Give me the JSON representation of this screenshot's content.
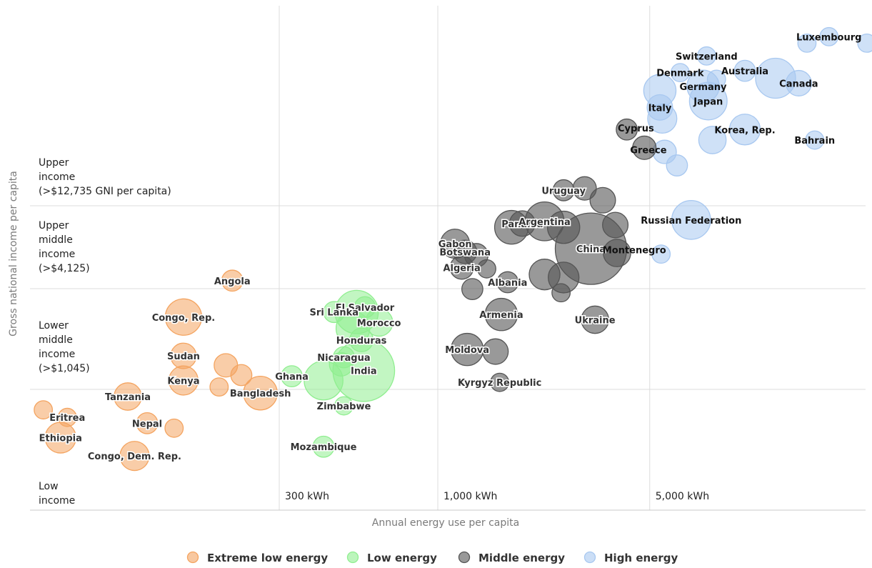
{
  "chart_data": {
    "type": "scatter",
    "xlabel": "Annual energy use per capita",
    "ylabel": "Gross national income per capita",
    "xscale": "log",
    "yscale": "categorical-bands",
    "x_ticks": [
      {
        "value": 300,
        "label": "300 kWh"
      },
      {
        "value": 1000,
        "label": "1,000 kWh"
      },
      {
        "value": 5000,
        "label": "5,000 kWh"
      }
    ],
    "income_bands": [
      {
        "label": [
          "Upper",
          "income",
          "(>$12,735 GNI per capita)"
        ]
      },
      {
        "label": [
          "Upper",
          "middle",
          "income",
          "(>$4,125)"
        ]
      },
      {
        "label": [
          "Lower",
          "middle",
          "income",
          "(>$1,045)"
        ]
      },
      {
        "label": [
          "Low",
          "income"
        ]
      }
    ],
    "legend_position": "bottom",
    "series": [
      {
        "name": "Extreme low energy",
        "color": "#f4a460",
        "points": [
          {
            "label": "Angola",
            "x": 210,
            "y": 4600,
            "size": 3
          },
          {
            "label": "Congo, Rep.",
            "x": 145,
            "y": 2800,
            "size": 12
          },
          {
            "label": "Sudan",
            "x": 145,
            "y": 1650,
            "size": 5
          },
          {
            "label": "Kenya",
            "x": 145,
            "y": 1180,
            "size": 7
          },
          {
            "label": "",
            "x": 200,
            "y": 1450,
            "size": 4
          },
          {
            "label": "",
            "x": 225,
            "y": 1270,
            "size": 3
          },
          {
            "label": "",
            "x": 190,
            "y": 1080,
            "size": 2
          },
          {
            "label": "Bangladesh",
            "x": 260,
            "y": 1000,
            "size": 10
          },
          {
            "label": "Tanzania",
            "x": 95,
            "y": 960,
            "size": 6
          },
          {
            "label": "",
            "x": 50,
            "y": 820,
            "size": 2
          },
          {
            "label": "Eritrea",
            "x": 60,
            "y": 750,
            "size": 2
          },
          {
            "label": "Nepal",
            "x": 110,
            "y": 700,
            "size": 3
          },
          {
            "label": "",
            "x": 135,
            "y": 660,
            "size": 2
          },
          {
            "label": "Ethiopia",
            "x": 57,
            "y": 590,
            "size": 8
          },
          {
            "label": "Congo, Dem. Rep.",
            "x": 100,
            "y": 475,
            "size": 7
          }
        ]
      },
      {
        "name": "Low energy",
        "color": "#90ee90",
        "points": [
          {
            "label": "El Salvador",
            "x": 575,
            "y": 3200,
            "size": 3
          },
          {
            "label": "Sri Lanka",
            "x": 455,
            "y": 3000,
            "size": 3
          },
          {
            "label": "",
            "x": 540,
            "y": 3000,
            "size": 18
          },
          {
            "label": "Morocco",
            "x": 640,
            "y": 2600,
            "size": 6
          },
          {
            "label": "",
            "x": 525,
            "y": 2400,
            "size": 10
          },
          {
            "label": "Honduras",
            "x": 560,
            "y": 2050,
            "size": 4
          },
          {
            "label": "Nicaragua",
            "x": 490,
            "y": 1620,
            "size": 3
          },
          {
            "label": "",
            "x": 480,
            "y": 1470,
            "size": 4
          },
          {
            "label": "India",
            "x": 570,
            "y": 1350,
            "size": 40
          },
          {
            "label": "",
            "x": 420,
            "y": 1180,
            "size": 14
          },
          {
            "label": "Ghana",
            "x": 330,
            "y": 1250,
            "size": 3
          },
          {
            "label": "Zimbabwe",
            "x": 490,
            "y": 860,
            "size": 2
          },
          {
            "label": "Mozambique",
            "x": 420,
            "y": 530,
            "size": 3
          }
        ]
      },
      {
        "name": "Middle energy",
        "color": "#555555",
        "points": [
          {
            "label": "Uruguay",
            "x": 2600,
            "y": 15000,
            "size": 3
          },
          {
            "label": "",
            "x": 3050,
            "y": 15300,
            "size": 4
          },
          {
            "label": "",
            "x": 3500,
            "y": 13500,
            "size": 5
          },
          {
            "label": "Panama",
            "x": 1900,
            "y": 10000,
            "size": 5
          },
          {
            "label": "Argentina",
            "x": 2250,
            "y": 10300,
            "size": 14
          },
          {
            "label": "",
            "x": 1750,
            "y": 9500,
            "size": 10
          },
          {
            "label": "",
            "x": 2600,
            "y": 9500,
            "size": 9
          },
          {
            "label": "",
            "x": 3850,
            "y": 9800,
            "size": 5
          },
          {
            "label": "China",
            "x": 3200,
            "y": 7100,
            "size": 55
          },
          {
            "label": "",
            "x": 3900,
            "y": 6700,
            "size": 6
          },
          {
            "label": "Gabon",
            "x": 1140,
            "y": 7600,
            "size": 7
          },
          {
            "label": "Botswana",
            "x": 1230,
            "y": 6800,
            "size": 4
          },
          {
            "label": "",
            "x": 1340,
            "y": 6500,
            "size": 4
          },
          {
            "label": "Algeria",
            "x": 1200,
            "y": 5500,
            "size": 4
          },
          {
            "label": "",
            "x": 1450,
            "y": 5400,
            "size": 2
          },
          {
            "label": "",
            "x": 2250,
            "y": 5000,
            "size": 8
          },
          {
            "label": "",
            "x": 2600,
            "y": 4800,
            "size": 8
          },
          {
            "label": "Albania",
            "x": 1700,
            "y": 4500,
            "size": 3
          },
          {
            "label": "",
            "x": 1300,
            "y": 4100,
            "size": 3
          },
          {
            "label": "",
            "x": 2550,
            "y": 3900,
            "size": 2
          },
          {
            "label": "Armenia",
            "x": 1620,
            "y": 2900,
            "size": 9
          },
          {
            "label": "Ukraine",
            "x": 3300,
            "y": 2700,
            "size": 6
          },
          {
            "label": "Moldova",
            "x": 1250,
            "y": 1800,
            "size": 9
          },
          {
            "label": "",
            "x": 1550,
            "y": 1750,
            "size": 5
          },
          {
            "label": "Kyrgyz Republic",
            "x": 1600,
            "y": 1150,
            "size": 2
          }
        ]
      },
      {
        "name": "High energy",
        "color": "#a8c8f0",
        "points": [
          {
            "label": "Luxembourg",
            "x": 19500,
            "y": 76000,
            "size": 2
          },
          {
            "label": "",
            "x": 16500,
            "y": 71000,
            "size": 2
          },
          {
            "label": "",
            "x": 26000,
            "y": 71000,
            "size": 2
          },
          {
            "label": "Switzerland",
            "x": 7700,
            "y": 62000,
            "size": 2
          },
          {
            "label": "Denmark",
            "x": 6300,
            "y": 52000,
            "size": 2
          },
          {
            "label": "Australia",
            "x": 10300,
            "y": 53000,
            "size": 3
          },
          {
            "label": "",
            "x": 8300,
            "y": 48500,
            "size": 2
          },
          {
            "label": "Canada",
            "x": 15500,
            "y": 46500,
            "size": 5
          },
          {
            "label": "",
            "x": 13000,
            "y": 49000,
            "size": 15
          },
          {
            "label": "Germany",
            "x": 7500,
            "y": 45000,
            "size": 9
          },
          {
            "label": "",
            "x": 5400,
            "y": 43000,
            "size": 9
          },
          {
            "label": "Japan",
            "x": 7800,
            "y": 38500,
            "size": 13
          },
          {
            "label": "Italy",
            "x": 5400,
            "y": 36000,
            "size": 5
          },
          {
            "label": "",
            "x": 5500,
            "y": 32000,
            "size": 7
          },
          {
            "label": "Korea, Rep.",
            "x": 10300,
            "y": 28500,
            "size": 8
          },
          {
            "label": "",
            "x": 8050,
            "y": 25500,
            "size": 6
          },
          {
            "label": "Bahrain",
            "x": 17500,
            "y": 25500,
            "size": 2
          },
          {
            "label": "",
            "x": 5600,
            "y": 22500,
            "size": 4
          },
          {
            "label": "",
            "x": 6150,
            "y": 19500,
            "size": 3
          },
          {
            "label": "Russian Federation",
            "x": 6850,
            "y": 10500,
            "size": 14
          },
          {
            "label": "",
            "x": 5450,
            "y": 6600,
            "size": 2
          }
        ]
      }
    ],
    "extra_labels": [
      {
        "label": "Cyprus",
        "x": 4500,
        "y": 29000,
        "color_of": "Middle energy"
      },
      {
        "label": "Greece",
        "x": 4950,
        "y": 23000,
        "color_of": "Middle energy"
      },
      {
        "label": "Montenegro",
        "x": 4450,
        "y": 7000,
        "color_of": "Middle energy"
      }
    ],
    "extra_points": [
      {
        "label": "",
        "x": 4200,
        "y": 28500,
        "size": 3,
        "series": "Middle energy"
      },
      {
        "label": "",
        "x": 4800,
        "y": 23500,
        "size": 4,
        "series": "Middle energy"
      }
    ]
  }
}
